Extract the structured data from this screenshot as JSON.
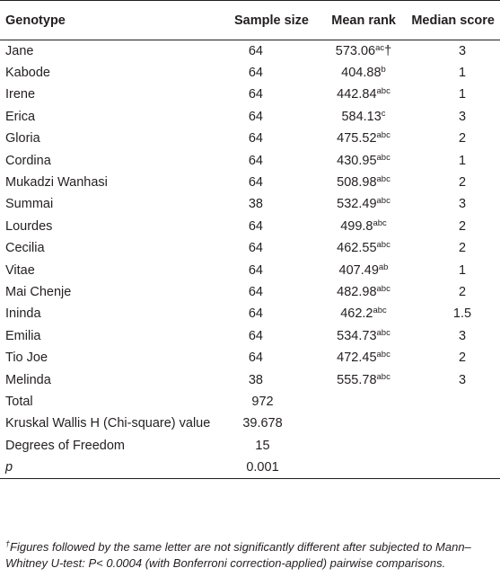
{
  "table": {
    "headers": {
      "genotype": "Genotype",
      "sample_size": "Sample size",
      "mean_rank": "Mean rank",
      "median_score": "Median score"
    },
    "rows": [
      {
        "genotype": "Jane",
        "sample_size": "64",
        "mean_rank": "573.06",
        "mean_rank_sup": "ac",
        "mean_rank_mark": "†",
        "median_score": "3"
      },
      {
        "genotype": "Kabode",
        "sample_size": "64",
        "mean_rank": "404.88",
        "mean_rank_sup": "b",
        "mean_rank_mark": "",
        "median_score": "1"
      },
      {
        "genotype": "Irene",
        "sample_size": "64",
        "mean_rank": "442.84",
        "mean_rank_sup": "abc",
        "mean_rank_mark": "",
        "median_score": "1"
      },
      {
        "genotype": "Erica",
        "sample_size": "64",
        "mean_rank": "584.13",
        "mean_rank_sup": "c",
        "mean_rank_mark": "",
        "median_score": "3"
      },
      {
        "genotype": "Gloria",
        "sample_size": "64",
        "mean_rank": "475.52",
        "mean_rank_sup": "abc",
        "mean_rank_mark": "",
        "median_score": "2"
      },
      {
        "genotype": "Cordina",
        "sample_size": "64",
        "mean_rank": "430.95",
        "mean_rank_sup": "abc",
        "mean_rank_mark": "",
        "median_score": "1"
      },
      {
        "genotype": "Mukadzi Wanhasi",
        "sample_size": "64",
        "mean_rank": "508.98",
        "mean_rank_sup": "abc",
        "mean_rank_mark": "",
        "median_score": "2"
      },
      {
        "genotype": "Summai",
        "sample_size": "38",
        "mean_rank": "532.49",
        "mean_rank_sup": "abc",
        "mean_rank_mark": "",
        "median_score": "3"
      },
      {
        "genotype": "Lourdes",
        "sample_size": "64",
        "mean_rank": "499.8",
        "mean_rank_sup": "abc",
        "mean_rank_mark": "",
        "median_score": "2"
      },
      {
        "genotype": "Cecilia",
        "sample_size": "64",
        "mean_rank": "462.55",
        "mean_rank_sup": "abc",
        "mean_rank_mark": "",
        "median_score": "2"
      },
      {
        "genotype": "Vitae",
        "sample_size": "64",
        "mean_rank": "407.49",
        "mean_rank_sup": "ab",
        "mean_rank_mark": "",
        "median_score": "1"
      },
      {
        "genotype": "Mai Chenje",
        "sample_size": "64",
        "mean_rank": "482.98",
        "mean_rank_sup": "abc",
        "mean_rank_mark": "",
        "median_score": "2"
      },
      {
        "genotype": "Ininda",
        "sample_size": "64",
        "mean_rank": "462.2",
        "mean_rank_sup": "abc",
        "mean_rank_mark": "",
        "median_score": "1.5"
      },
      {
        "genotype": "Emilia",
        "sample_size": "64",
        "mean_rank": "534.73",
        "mean_rank_sup": "abc",
        "mean_rank_mark": "",
        "median_score": "3"
      },
      {
        "genotype": "Tio Joe",
        "sample_size": "64",
        "mean_rank": "472.45",
        "mean_rank_sup": "abc",
        "mean_rank_mark": "",
        "median_score": "2"
      },
      {
        "genotype": "Melinda",
        "sample_size": "38",
        "mean_rank": "555.78",
        "mean_rank_sup": "abc",
        "mean_rank_mark": "",
        "median_score": "3"
      }
    ],
    "stats": [
      {
        "label": "Total",
        "value": "972"
      },
      {
        "label": "Kruskal Wallis H (Chi-square) value",
        "value": "39.678"
      },
      {
        "label": "Degrees of Freedom",
        "value": "15"
      },
      {
        "label": "p",
        "value": "0.001"
      }
    ]
  },
  "footnote": {
    "mark": "†",
    "text": "Figures followed by the same letter are not significantly different after subjected to Mann–Whitney U-test: P< 0.0004 (with Bonferroni correction-applied) pairwise comparisons."
  }
}
